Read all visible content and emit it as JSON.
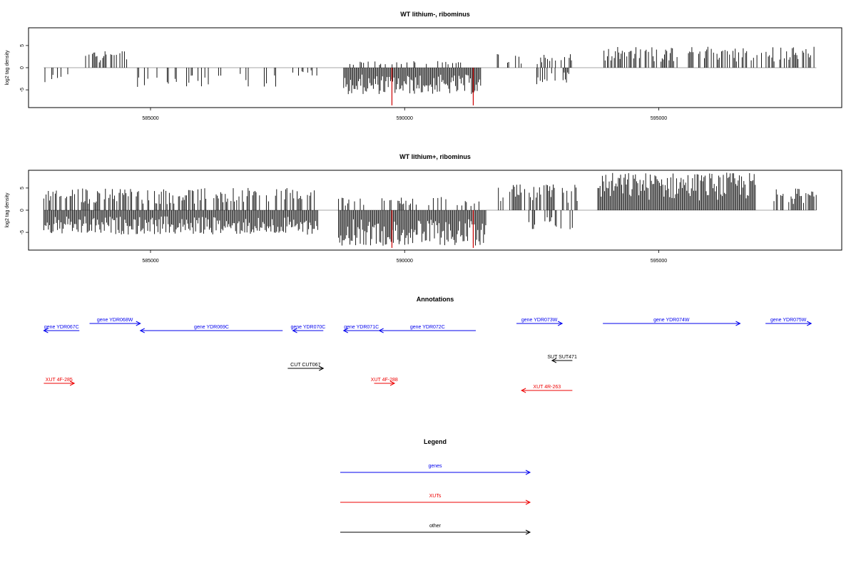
{
  "chart_data": [
    {
      "type": "bar",
      "title": "WT lithium-, ribominus",
      "xlabel": "",
      "ylabel": "log2 tag density",
      "xlim": [
        582600,
        598600
      ],
      "ylim": [
        -9,
        9
      ],
      "yticks": [
        5,
        0,
        -5
      ],
      "xticks": [
        585000,
        590000,
        595000
      ],
      "colors": {
        "bars": "#000000",
        "highlight": "#cc0000"
      },
      "segments": [
        {
          "range": [
            582900,
            583000
          ],
          "sign": "pos",
          "max": 1.0,
          "density": "sparse"
        },
        {
          "range": [
            582900,
            583500
          ],
          "sign": "neg",
          "max": 3.5,
          "density": "sparse"
        },
        {
          "range": [
            583700,
            584600
          ],
          "sign": "pos",
          "max": 4.2,
          "density": "medium"
        },
        {
          "range": [
            584700,
            587500
          ],
          "sign": "neg",
          "max": 4.5,
          "density": "sparse"
        },
        {
          "range": [
            587800,
            588300
          ],
          "sign": "neg",
          "max": 2.0,
          "density": "sparse"
        },
        {
          "range": [
            588800,
            591500
          ],
          "sign": "neg",
          "max": 6.0,
          "density": "dense"
        },
        {
          "range": [
            588900,
            591300
          ],
          "sign": "pos",
          "max": 1.5,
          "density": "sparse"
        },
        {
          "range": [
            591800,
            593300
          ],
          "sign": "pos",
          "max": 3.2,
          "density": "sparse"
        },
        {
          "range": [
            592600,
            593300
          ],
          "sign": "neg",
          "max": 4.0,
          "density": "sparse"
        },
        {
          "range": [
            593900,
            598100
          ],
          "sign": "pos",
          "max": 4.8,
          "density": "medium"
        }
      ],
      "highlights": [
        {
          "x": 589750,
          "value": -8.5
        },
        {
          "x": 591350,
          "value": -8.5
        }
      ]
    },
    {
      "type": "bar",
      "title": "WT lithium+, ribominus",
      "xlabel": "",
      "ylabel": "log2 tag density",
      "xlim": [
        582600,
        598600
      ],
      "ylim": [
        -9,
        9
      ],
      "yticks": [
        5,
        0,
        -5
      ],
      "xticks": [
        585000,
        590000,
        595000
      ],
      "colors": {
        "bars": "#000000",
        "highlight": "#cc0000"
      },
      "segments": [
        {
          "range": [
            582900,
            588300
          ],
          "sign": "pos",
          "max": 5.0,
          "density": "medium"
        },
        {
          "range": [
            582900,
            588300
          ],
          "sign": "neg",
          "max": 5.5,
          "density": "dense"
        },
        {
          "range": [
            588700,
            591600
          ],
          "sign": "pos",
          "max": 3.0,
          "density": "sparse"
        },
        {
          "range": [
            588700,
            591600
          ],
          "sign": "neg",
          "max": 8.0,
          "density": "dense"
        },
        {
          "range": [
            591800,
            593400
          ],
          "sign": "pos",
          "max": 5.8,
          "density": "medium"
        },
        {
          "range": [
            592400,
            593300
          ],
          "sign": "neg",
          "max": 4.5,
          "density": "sparse"
        },
        {
          "range": [
            593800,
            596900
          ],
          "sign": "pos",
          "max": 8.5,
          "density": "dense"
        },
        {
          "range": [
            597200,
            598100
          ],
          "sign": "pos",
          "max": 5.0,
          "density": "medium"
        }
      ],
      "highlights": [
        {
          "x": 589750,
          "value": -8.5
        },
        {
          "x": 591350,
          "value": -8.5
        }
      ]
    }
  ],
  "annotations": {
    "title": "Annotations",
    "items": [
      {
        "label": "gene YDR067C",
        "start": 582900,
        "end": 583600,
        "direction": "left",
        "row": "gene_low",
        "kind": "gene"
      },
      {
        "label": "gene YDR068W",
        "start": 583800,
        "end": 584800,
        "direction": "right",
        "row": "gene_high",
        "kind": "gene"
      },
      {
        "label": "gene YDR069C",
        "start": 584800,
        "end": 587600,
        "direction": "left",
        "row": "gene_low",
        "kind": "gene"
      },
      {
        "label": "gene YDR070C",
        "start": 587800,
        "end": 588400,
        "direction": "left",
        "row": "gene_low",
        "kind": "gene"
      },
      {
        "label": "gene YDR071C",
        "start": 588800,
        "end": 589500,
        "direction": "left",
        "row": "gene_low",
        "kind": "gene"
      },
      {
        "label": "gene YDR072C",
        "start": 589500,
        "end": 591400,
        "direction": "left",
        "row": "gene_low",
        "kind": "gene"
      },
      {
        "label": "gene YDR073W",
        "start": 592200,
        "end": 593100,
        "direction": "right",
        "row": "gene_high",
        "kind": "gene"
      },
      {
        "label": "gene YDR074W",
        "start": 593900,
        "end": 596600,
        "direction": "right",
        "row": "gene_high",
        "kind": "gene"
      },
      {
        "label": "gene YDR075W",
        "start": 597100,
        "end": 598000,
        "direction": "right",
        "row": "gene_high",
        "kind": "gene"
      },
      {
        "label": "SUT SUT471",
        "start": 592900,
        "end": 593300,
        "direction": "left",
        "row": "other_high",
        "kind": "other"
      },
      {
        "label": "CUT CUT067",
        "start": 587700,
        "end": 588400,
        "direction": "right",
        "row": "other_low",
        "kind": "other"
      },
      {
        "label": "XUT 4F-285",
        "start": 582900,
        "end": 583500,
        "direction": "right",
        "row": "xut_high",
        "kind": "xut"
      },
      {
        "label": "XUT 4F-288",
        "start": 589400,
        "end": 589800,
        "direction": "right",
        "row": "xut_high",
        "kind": "xut"
      },
      {
        "label": "XUT 4R-263",
        "start": 592300,
        "end": 593300,
        "direction": "left",
        "row": "xut_low",
        "kind": "xut"
      }
    ]
  },
  "legend": {
    "title": "Legend",
    "items": [
      {
        "label": "genes",
        "kind": "gene"
      },
      {
        "label": "XUTs",
        "kind": "xut"
      },
      {
        "label": "other",
        "kind": "other"
      }
    ]
  },
  "colors": {
    "gene": "#0000ee",
    "xut": "#ee0000",
    "other": "#000000",
    "axis": "#000000",
    "zero": "#888888"
  }
}
